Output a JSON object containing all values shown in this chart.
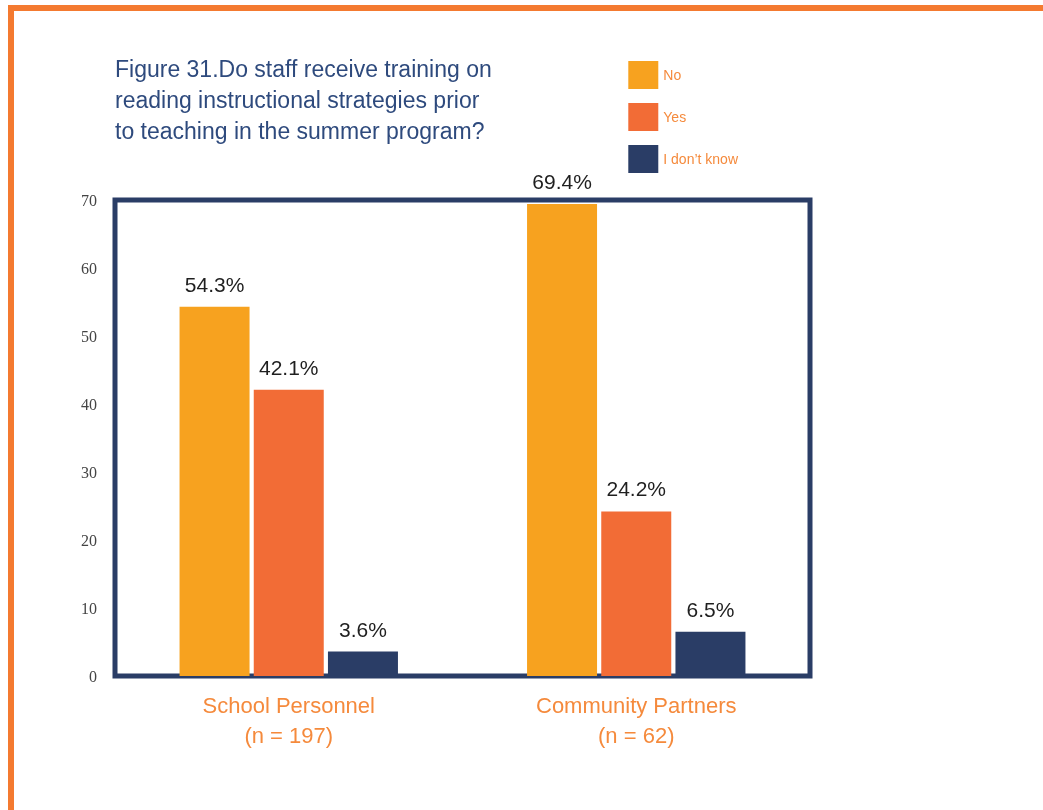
{
  "chart_data": {
    "type": "bar",
    "title": "Figure 31.Do staff receive training on reading instructional strategies prior to teaching in the summer program?",
    "categories": [
      "School Personnel\n(n = 197)",
      "Community Partners\n(n = 62)"
    ],
    "series": [
      {
        "name": "No",
        "color": "#f7a21f",
        "values": [
          54.3,
          69.4
        ],
        "value_labels": [
          "54.3%",
          "69.4%"
        ]
      },
      {
        "name": "Yes",
        "color": "#f26c36",
        "values": [
          42.1,
          24.2
        ],
        "value_labels": [
          "42.1%",
          "24.2%"
        ]
      },
      {
        "name": "I don’t know",
        "color": "#2a3d66",
        "values": [
          3.6,
          6.5
        ],
        "value_labels": [
          "3.6%",
          "6.5%"
        ]
      }
    ],
    "ylim": [
      0,
      70
    ],
    "yticks": [
      0,
      10,
      20,
      30,
      40,
      50,
      60,
      70
    ],
    "legend": "top right"
  }
}
